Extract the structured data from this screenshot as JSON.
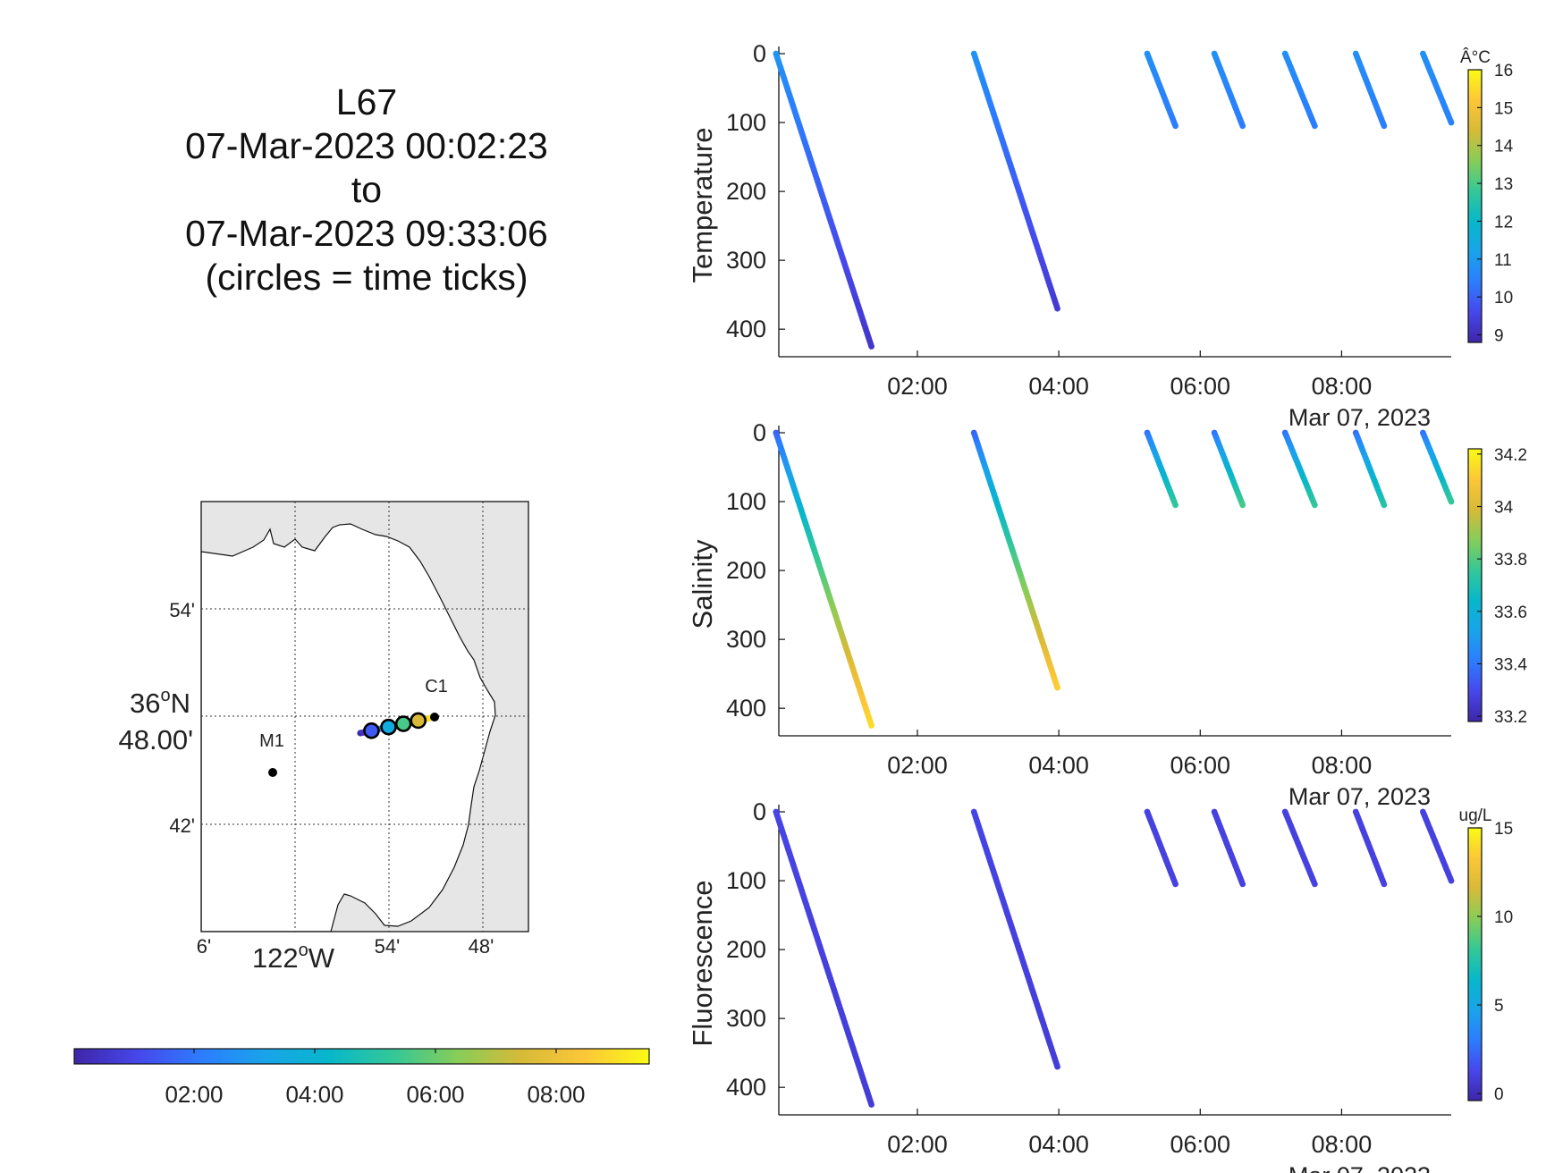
{
  "title": {
    "lines": [
      "L67",
      "07-Mar-2023 00:02:23",
      "to",
      "07-Mar-2023 09:33:06",
      "(circles = time ticks)"
    ]
  },
  "map": {
    "background_color": "#e6e6e6",
    "ocean_color": "#ffffff",
    "lat_ticks": [
      "54'",
      "42'"
    ],
    "lat_center_label": [
      "36",
      "o",
      "N"
    ],
    "lat_center_sub": "48.00'",
    "lon_ticks": [
      "6'",
      "54'",
      "48'"
    ],
    "lon_center_label": [
      "122",
      "o",
      "W"
    ],
    "stations": [
      {
        "name": "M1"
      },
      {
        "name": "C1"
      }
    ]
  },
  "time_colorbar": {
    "ticks": [
      "02:00",
      "04:00",
      "06:00",
      "08:00"
    ]
  },
  "panels_common": {
    "x_ticks": [
      "02:00",
      "04:00",
      "06:00",
      "08:00"
    ],
    "x_hours": [
      2,
      4,
      6,
      8
    ],
    "x_range_hours": [
      0.04,
      9.55
    ],
    "date_label": "Mar 07, 2023",
    "y_ticks": [
      0,
      100,
      200,
      300,
      400
    ],
    "y_range": [
      0,
      440
    ]
  },
  "chart_data": [
    {
      "type": "scatter",
      "ylabel": "Temperature",
      "colorbar_unit": "Â°C",
      "colorbar_ticks": [
        9,
        10,
        11,
        12,
        13,
        14,
        15,
        16
      ],
      "color_range": [
        8.8,
        16
      ],
      "profiles": [
        {
          "t_start": 0.0,
          "t_end": 1.35,
          "depth_max": 425,
          "values_top": 10.9,
          "values_bottom": 9.2
        },
        {
          "t_start": 2.8,
          "t_end": 3.98,
          "depth_max": 370,
          "values_top": 10.9,
          "values_bottom": 9.3
        },
        {
          "t_start": 5.25,
          "t_end": 5.65,
          "depth_max": 105,
          "values_top": 10.8,
          "values_bottom": 10.4
        },
        {
          "t_start": 6.2,
          "t_end": 6.6,
          "depth_max": 105,
          "values_top": 10.8,
          "values_bottom": 10.4
        },
        {
          "t_start": 7.2,
          "t_end": 7.62,
          "depth_max": 105,
          "values_top": 10.8,
          "values_bottom": 10.4
        },
        {
          "t_start": 8.2,
          "t_end": 8.6,
          "depth_max": 105,
          "values_top": 10.8,
          "values_bottom": 10.4
        },
        {
          "t_start": 9.15,
          "t_end": 9.55,
          "depth_max": 100,
          "values_top": 10.8,
          "values_bottom": 10.5
        }
      ]
    },
    {
      "type": "scatter",
      "ylabel": "Salinity",
      "colorbar_unit": "",
      "colorbar_ticks": [
        33.2,
        33.4,
        33.6,
        33.8,
        34.0,
        34.2
      ],
      "colorbar_tick_labels": [
        "33.2",
        "33.4",
        "33.6",
        "33.8",
        "34",
        "34.2"
      ],
      "color_range": [
        33.18,
        34.22
      ],
      "profiles": [
        {
          "t_start": 0.0,
          "t_end": 1.35,
          "depth_max": 425,
          "values_top": 33.35,
          "values_bottom": 34.15
        },
        {
          "t_start": 2.8,
          "t_end": 3.98,
          "depth_max": 370,
          "values_top": 33.35,
          "values_bottom": 34.12
        },
        {
          "t_start": 5.25,
          "t_end": 5.65,
          "depth_max": 105,
          "values_top": 33.38,
          "values_bottom": 33.75
        },
        {
          "t_start": 6.2,
          "t_end": 6.6,
          "depth_max": 105,
          "values_top": 33.38,
          "values_bottom": 33.78
        },
        {
          "t_start": 7.2,
          "t_end": 7.62,
          "depth_max": 105,
          "values_top": 33.38,
          "values_bottom": 33.75
        },
        {
          "t_start": 8.2,
          "t_end": 8.6,
          "depth_max": 105,
          "values_top": 33.38,
          "values_bottom": 33.72
        },
        {
          "t_start": 9.15,
          "t_end": 9.55,
          "depth_max": 100,
          "values_top": 33.38,
          "values_bottom": 33.75
        }
      ]
    },
    {
      "type": "scatter",
      "ylabel": "Fluorescence",
      "colorbar_unit": "ug/L",
      "colorbar_ticks": [
        0,
        5,
        10,
        15
      ],
      "color_range": [
        -0.4,
        15
      ],
      "profiles": [
        {
          "t_start": 0.0,
          "t_end": 1.35,
          "depth_max": 425,
          "values_top": 1.2,
          "values_bottom": 0.8
        },
        {
          "t_start": 2.8,
          "t_end": 3.98,
          "depth_max": 370,
          "values_top": 1.2,
          "values_bottom": 0.8
        },
        {
          "t_start": 5.25,
          "t_end": 5.65,
          "depth_max": 105,
          "values_top": 1.0,
          "values_bottom": 1.0
        },
        {
          "t_start": 6.2,
          "t_end": 6.6,
          "depth_max": 105,
          "values_top": 1.0,
          "values_bottom": 1.0
        },
        {
          "t_start": 7.2,
          "t_end": 7.62,
          "depth_max": 105,
          "values_top": 1.0,
          "values_bottom": 1.0
        },
        {
          "t_start": 8.2,
          "t_end": 8.6,
          "depth_max": 105,
          "values_top": 1.0,
          "values_bottom": 1.0
        },
        {
          "t_start": 9.15,
          "t_end": 9.55,
          "depth_max": 100,
          "values_top": 1.0,
          "values_bottom": 1.0
        }
      ]
    }
  ]
}
